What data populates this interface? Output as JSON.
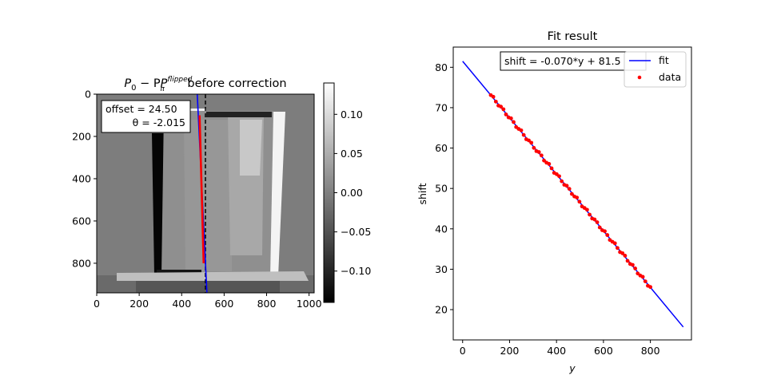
{
  "chart_data": [
    {
      "type": "heatmap",
      "title_main": "P",
      "title_sub0": "0",
      "title_minus": " − P",
      "title_subpi": "π",
      "title_sup": "flipped",
      "title_rest": " before correction",
      "xlim": [
        0,
        1024
      ],
      "ylim": [
        940,
        0
      ],
      "xticks": [
        0,
        200,
        400,
        600,
        800,
        1000
      ],
      "yticks": [
        0,
        200,
        400,
        600,
        800
      ],
      "colormap": "gray",
      "colorbar": {
        "range": [
          -0.14,
          0.14
        ],
        "ticks": [
          0.1,
          0.05,
          0.0,
          -0.05,
          -0.1
        ],
        "tick_labels": [
          "0.10",
          "0.05",
          "0.00",
          "−0.05",
          "−0.10"
        ]
      },
      "annotation": {
        "offset_text": "offset = 24.50",
        "theta_text": "θ = -2.015"
      },
      "center_line": {
        "x": 512,
        "style": "dashed",
        "color": "#000000"
      },
      "fit_line": {
        "x_top": 473.4,
        "x_bottom": 519.0,
        "color": "#0000ff"
      },
      "data_line": {
        "x_top": 484.4,
        "x_bottom": 503.6,
        "y_top": 100,
        "y_bottom": 800,
        "color": "#ff0000"
      }
    },
    {
      "type": "scatter",
      "title": "Fit result",
      "xlabel": "y",
      "ylabel": "shift",
      "xlim": [
        -40,
        975
      ],
      "ylim": [
        12.5,
        85
      ],
      "xticks": [
        0,
        200,
        400,
        600,
        800
      ],
      "yticks": [
        20,
        30,
        40,
        50,
        60,
        70,
        80
      ],
      "equation": "shift = -0.070*y + 81.5",
      "fit": {
        "slope": -0.07,
        "intercept": 81.5,
        "x_range": [
          0,
          940
        ],
        "color": "#0000ff"
      },
      "data_color": "#ff0000",
      "data_x_range": [
        120,
        800
      ],
      "legend": {
        "position": "top-right",
        "fit_label": "fit",
        "data_label": "data"
      }
    }
  ]
}
